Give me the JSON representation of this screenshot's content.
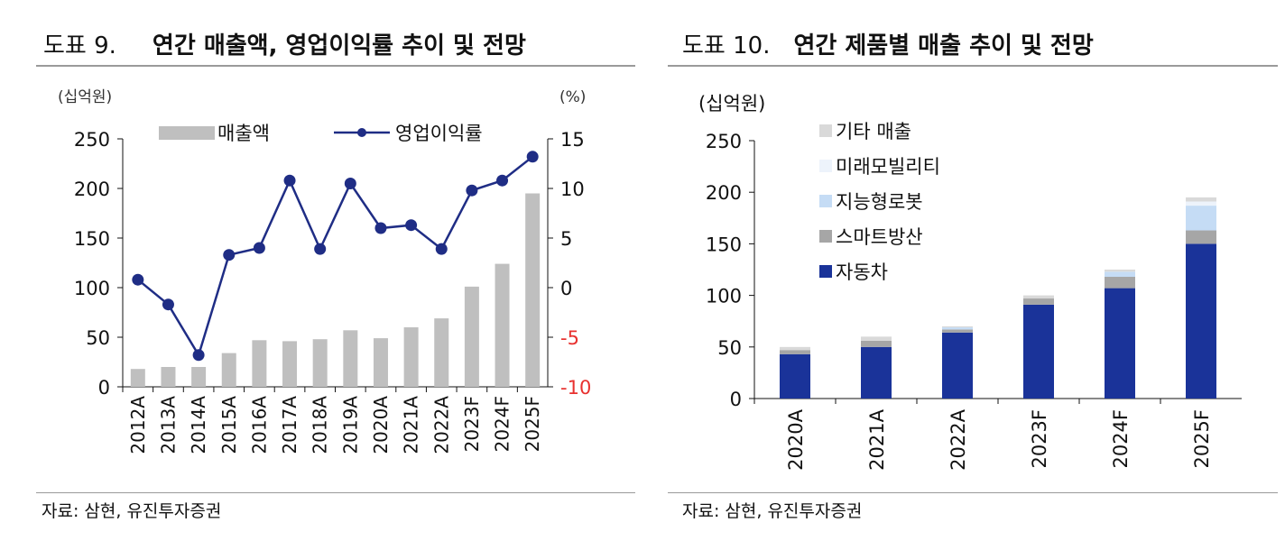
{
  "left": {
    "fig_label": "도표 9.",
    "title": "연간 매출액, 영업이익률 추이 및 전망",
    "source": "자료: 삼현, 유진투자증권",
    "chart_data": {
      "type": "bar+line",
      "y_left_unit": "(십억원)",
      "y_right_unit": "(%)",
      "y_left_range": [
        0,
        250
      ],
      "y_left_ticks": [
        "0",
        "50",
        "100",
        "150",
        "200",
        "250"
      ],
      "y_right_range": [
        -10,
        15
      ],
      "y_right_ticks": [
        "-10",
        "-5",
        "0",
        "5",
        "10",
        "15"
      ],
      "negative_tick_color": "#e8312f",
      "categories": [
        "2012A",
        "2013A",
        "2014A",
        "2015A",
        "2016A",
        "2017A",
        "2018A",
        "2019A",
        "2020A",
        "2021A",
        "2022A",
        "2023F",
        "2024F",
        "2025F"
      ],
      "series": [
        {
          "name": "매출액",
          "type": "bar",
          "axis": "left",
          "color": "#bfbfbf",
          "values": [
            18,
            20,
            20,
            34,
            47,
            46,
            48,
            57,
            49,
            60,
            69,
            101,
            124,
            195
          ]
        },
        {
          "name": "영업이익률",
          "type": "line",
          "axis": "right",
          "color": "#1f2d85",
          "values": [
            0.8,
            -1.7,
            -6.8,
            3.3,
            4.0,
            10.8,
            3.9,
            10.5,
            6.0,
            6.3,
            3.9,
            9.8,
            10.8,
            13.2
          ]
        }
      ],
      "legend_position": "top",
      "grid": false
    }
  },
  "right": {
    "fig_label": "도표 10.",
    "title": "연간 제품별 매출 추이 및 전망",
    "source": "자료: 삼현, 유진투자증권",
    "chart_data": {
      "type": "stacked-bar",
      "y_unit": "(십억원)",
      "ylim": [
        0,
        250
      ],
      "y_ticks": [
        "0",
        "50",
        "100",
        "150",
        "200",
        "250"
      ],
      "categories": [
        "2020A",
        "2021A",
        "2022A",
        "2023F",
        "2024F",
        "2025F"
      ],
      "series": [
        {
          "name": "자동차",
          "color": "#1a3399",
          "values": [
            43,
            50,
            64,
            91,
            107,
            150
          ]
        },
        {
          "name": "스마트방산",
          "color": "#a6a6a6",
          "values": [
            4,
            6,
            3,
            6,
            11,
            13
          ]
        },
        {
          "name": "지능형로봇",
          "color": "#c5dcf5",
          "values": [
            0,
            0,
            2,
            0,
            5,
            24
          ]
        },
        {
          "name": "미래모빌리티",
          "color": "#edf3fb",
          "values": [
            0,
            0,
            0,
            0,
            0,
            4
          ]
        },
        {
          "name": "기타 매출",
          "color": "#d9d9d9",
          "values": [
            3,
            4,
            1,
            3,
            2,
            4
          ]
        }
      ],
      "legend_order": [
        "기타 매출",
        "미래모빌리티",
        "지능형로봇",
        "스마트방산",
        "자동차"
      ],
      "legend_position": "top-left",
      "grid": false
    }
  }
}
